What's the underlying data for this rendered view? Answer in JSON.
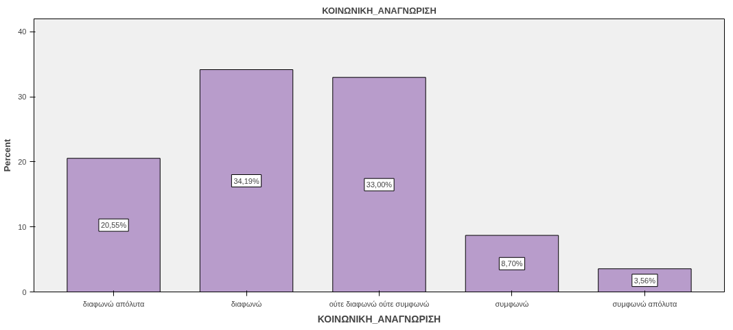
{
  "chart_data": {
    "type": "bar",
    "title": "ΚΟΙΝΩΝΙΚΗ_ΑΝΑΓΝΩΡΙΣΗ",
    "xlabel": "ΚΟΙΝΩΝΙΚΗ_ΑΝΑΓΝΩΡΙΣΗ",
    "ylabel": "Percent",
    "categories": [
      "διαφωνώ απόλυτα",
      "διαφωνώ",
      "ούτε διαφωνώ ούτε συμφωνώ",
      "συμφωνώ",
      "συμφωνώ απόλυτα"
    ],
    "values": [
      20.55,
      34.19,
      33.0,
      8.7,
      3.56
    ],
    "value_labels": [
      "20,55%",
      "34,19%",
      "33,00%",
      "8,70%",
      "3,56%"
    ],
    "color": "#b89ccb",
    "ylim": [
      0,
      42
    ],
    "yticks": [
      0,
      10,
      20,
      30,
      40
    ],
    "grid": false
  }
}
